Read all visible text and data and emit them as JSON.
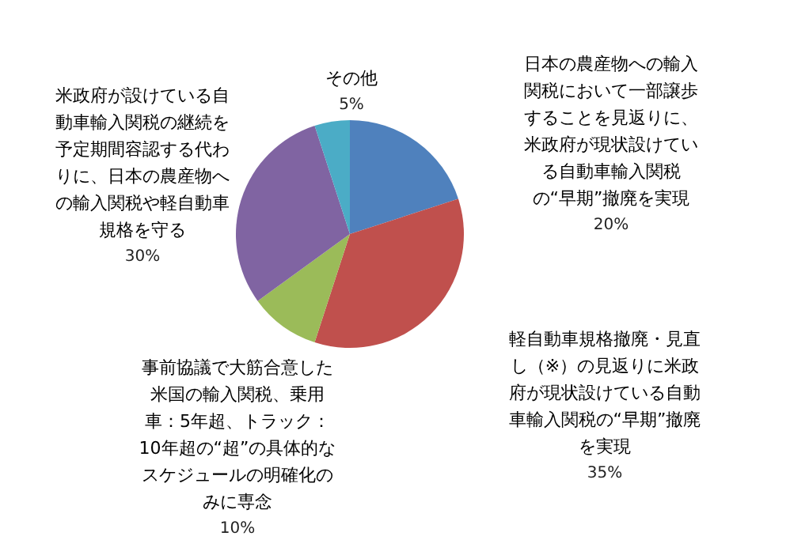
{
  "chart_data": {
    "type": "pie",
    "categories": [
      "日本の農産物への輸入関税において一部譲歩することを見返りに、米政府が現状設けている自動車輸入関税の“早期”撤廃を実現",
      "軽自動車規格撤廃・見直し（※）の見返りに米政府が現状設けている自動車輸入関税の“早期”撤廃を実現",
      "事前協議で大筋合意した米国の輸入関税、乗用車：5年超、トラック：10年超の“超”の具体的なスケジュールの明確化のみに専念",
      "米政府が設けている自動車輸入関税の継続を予定期間容認する代わりに、日本の農産物への輸入関税や軽自動車規格を守る",
      "その他"
    ],
    "values": [
      20,
      35,
      10,
      30,
      5
    ],
    "colors": [
      "#4f81bd",
      "#c0504d",
      "#9bbb59",
      "#8064a2",
      "#4bacc6"
    ],
    "value_labels": [
      "20%",
      "35%",
      "10%",
      "30%",
      "5%"
    ]
  }
}
